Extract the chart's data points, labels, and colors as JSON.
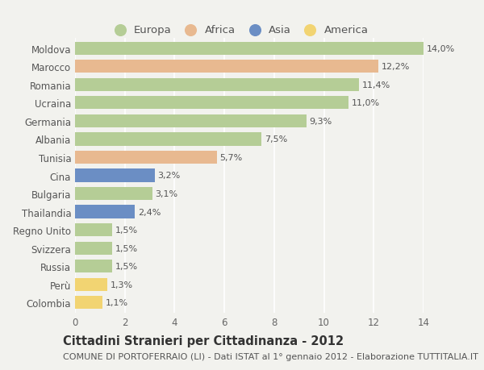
{
  "countries": [
    "Moldova",
    "Marocco",
    "Romania",
    "Ucraina",
    "Germania",
    "Albania",
    "Tunisia",
    "Cina",
    "Bulgaria",
    "Thailandia",
    "Regno Unito",
    "Svizzera",
    "Russia",
    "Perù",
    "Colombia"
  ],
  "values": [
    14.0,
    12.2,
    11.4,
    11.0,
    9.3,
    7.5,
    5.7,
    3.2,
    3.1,
    2.4,
    1.5,
    1.5,
    1.5,
    1.3,
    1.1
  ],
  "labels": [
    "14,0%",
    "12,2%",
    "11,4%",
    "11,0%",
    "9,3%",
    "7,5%",
    "5,7%",
    "3,2%",
    "3,1%",
    "2,4%",
    "1,5%",
    "1,5%",
    "1,5%",
    "1,3%",
    "1,1%"
  ],
  "continents": [
    "Europa",
    "Africa",
    "Europa",
    "Europa",
    "Europa",
    "Europa",
    "Africa",
    "Asia",
    "Europa",
    "Asia",
    "Europa",
    "Europa",
    "Europa",
    "America",
    "America"
  ],
  "continent_colors": {
    "Europa": "#b5cd96",
    "Africa": "#e8b990",
    "Asia": "#6b8ec4",
    "America": "#f2d472"
  },
  "legend_order": [
    "Europa",
    "Africa",
    "Asia",
    "America"
  ],
  "legend_colors": [
    "#b5cd96",
    "#e8b990",
    "#6b8ec4",
    "#f2d472"
  ],
  "xlim": [
    0,
    14
  ],
  "xticks": [
    0,
    2,
    4,
    6,
    8,
    10,
    12,
    14
  ],
  "title": "Cittadini Stranieri per Cittadinanza - 2012",
  "subtitle": "COMUNE DI PORTOFERRAIO (LI) - Dati ISTAT al 1° gennaio 2012 - Elaborazione TUTTITALIA.IT",
  "background_color": "#f2f2ee",
  "grid_color": "#ffffff",
  "bar_height": 0.72,
  "title_fontsize": 10.5,
  "subtitle_fontsize": 8.0,
  "label_fontsize": 8.0,
  "tick_fontsize": 8.5,
  "legend_fontsize": 9.5
}
